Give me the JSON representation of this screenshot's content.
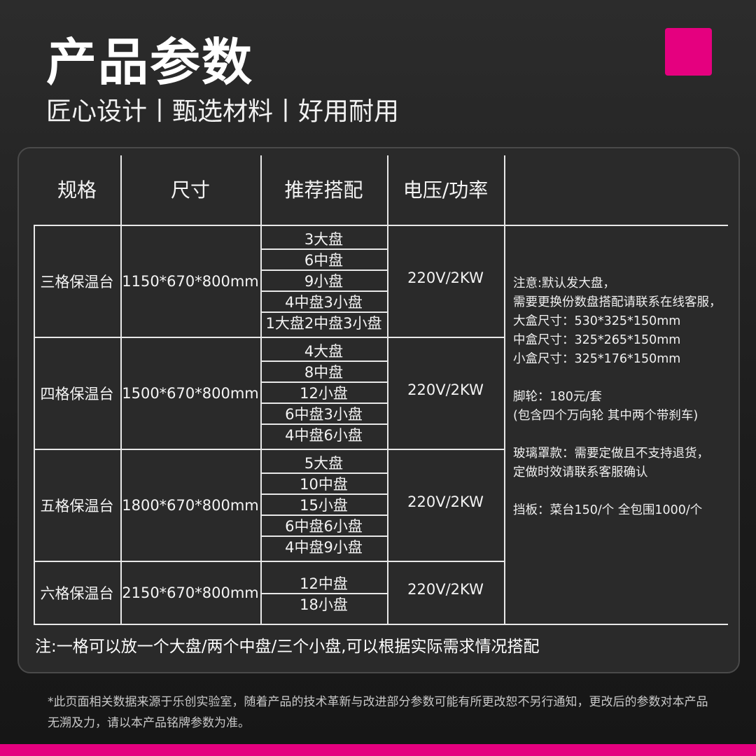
{
  "header": {
    "title": "产品参数",
    "subtitle": "匠心设计丨甄选材料丨好用耐用",
    "brand_color": "#e5007f"
  },
  "table": {
    "headers": [
      "规格",
      "尺寸",
      "推荐搭配",
      "电压/功率",
      ""
    ],
    "rows": [
      {
        "spec": "三格保温台",
        "size": "1150*670*800mm",
        "combos": [
          "3大盘",
          "6中盘",
          "9小盘",
          "4中盘3小盘",
          "1大盘2中盘3小盘"
        ],
        "power": "220V/2KW"
      },
      {
        "spec": "四格保温台",
        "size": "1500*670*800mm",
        "combos": [
          "4大盘",
          "8中盘",
          "12小盘",
          "6中盘3小盘",
          "4中盘6小盘"
        ],
        "power": "220V/2KW"
      },
      {
        "spec": "五格保温台",
        "size": "1800*670*800mm",
        "combos": [
          "5大盘",
          "10中盘",
          "15小盘",
          "6中盘6小盘",
          "4中盘9小盘"
        ],
        "power": "220V/2KW"
      },
      {
        "spec": "六格保温台",
        "size": "2150*670*800mm",
        "combos": [
          "12中盘",
          "18小盘"
        ],
        "power": "220V/2KW"
      }
    ],
    "notes": "注意:默认发大盘，\n需要更换份数盘搭配请联系在线客服，\n大盒尺寸：530*325*150mm\n中盒尺寸：325*265*150mm\n小盒尺寸：325*176*150mm\n\n脚轮：180元/套\n(包含四个万向轮 其中两个带刹车)\n\n玻璃罩款：需要定做且不支持退货，\n定做时效请联系客服确认\n\n挡板：菜台150/个 全包围1000/个",
    "footnote": "注:一格可以放一个大盘/两个中盘/三个小盘,可以根据实际需求情况搭配"
  },
  "disclaimer": "*此页面相关数据来源于乐创实验室，随着产品的技术革新与改进部分参数可能有所更改恕不另行通知，更改后的参数对本产品无溯及力，请以本产品铭牌参数为准。"
}
